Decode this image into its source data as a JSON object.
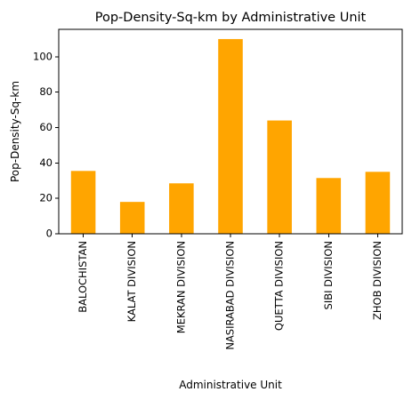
{
  "chart_data": {
    "type": "bar",
    "title": "Pop-Density-Sq-km by Administrative Unit",
    "xlabel": "Administrative Unit",
    "ylabel": "Pop-Density-Sq-km",
    "categories": [
      "BALOCHISTAN",
      "KALAT DIVISION",
      "MEKRAN DIVISION",
      "NASIRABAD DIVISION",
      "QUETTA DIVISION",
      "SIBI DIVISION",
      "ZHOB DIVISION"
    ],
    "values": [
      35.5,
      18,
      28.5,
      110,
      64,
      31.5,
      35
    ],
    "ylim": [
      0,
      115.5
    ],
    "yticks": [
      0,
      20,
      40,
      60,
      80,
      100
    ],
    "bar_color": "#FFA500",
    "grid": false,
    "legend": "none"
  }
}
